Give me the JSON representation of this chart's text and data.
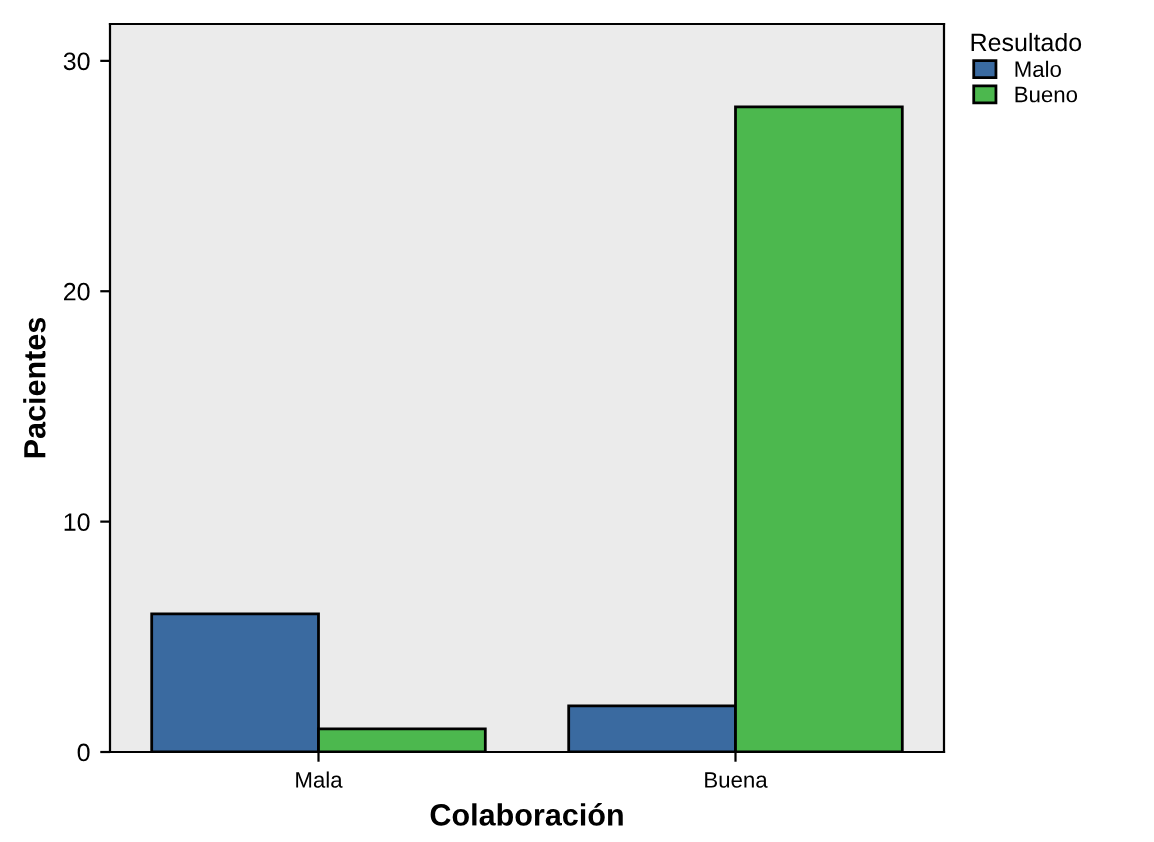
{
  "chart_data": {
    "type": "bar",
    "xlabel": "Colaboración",
    "ylabel": "Pacientes",
    "legend_title": "Resultado",
    "categories": [
      "Mala",
      "Buena"
    ],
    "series": [
      {
        "name": "Malo",
        "color": "#3a6aa0",
        "values": [
          6,
          2
        ]
      },
      {
        "name": "Bueno",
        "color": "#4cb84e",
        "values": [
          1,
          28
        ]
      }
    ],
    "ylim": [
      0,
      31.6
    ],
    "yticks": [
      0,
      10,
      20,
      30
    ],
    "grid": false,
    "legend": "top right"
  }
}
